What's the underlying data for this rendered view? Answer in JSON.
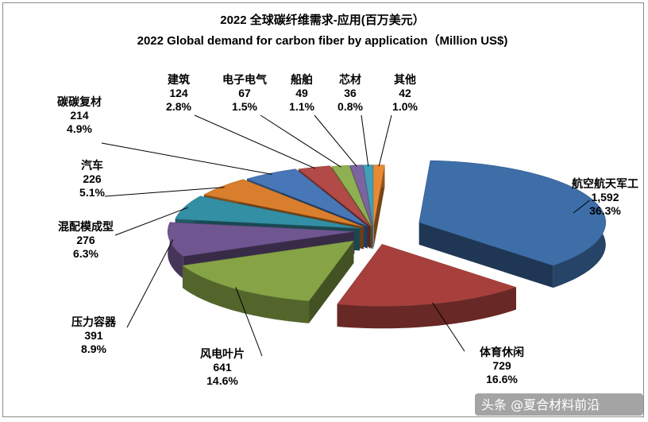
{
  "chart_data": {
    "type": "pie",
    "title": "2022 全球碳纤维需求-应用(百万美元）",
    "subtitle": "2022 Global demand for carbon fiber by application（Million US$)",
    "slices": [
      {
        "label": "航空航天军工",
        "value": 1592,
        "value_text": "1,592",
        "percent": "36.3%",
        "color": "#3D6EA8"
      },
      {
        "label": "体育休闲",
        "value": 729,
        "value_text": "729",
        "percent": "16.6%",
        "color": "#A7403C"
      },
      {
        "label": "风电叶片",
        "value": 641,
        "value_text": "641",
        "percent": "14.6%",
        "color": "#86A346"
      },
      {
        "label": "压力容器",
        "value": 391,
        "value_text": "391",
        "percent": "8.9%",
        "color": "#6F5690"
      },
      {
        "label": "混配模成型",
        "value": 276,
        "value_text": "276",
        "percent": "6.3%",
        "color": "#338FA3"
      },
      {
        "label": "汽车",
        "value": 226,
        "value_text": "226",
        "percent": "5.1%",
        "color": "#D97E2C"
      },
      {
        "label": "碳碳复材",
        "value": 214,
        "value_text": "214",
        "percent": "4.9%",
        "color": "#4877B8"
      },
      {
        "label": "建筑",
        "value": 124,
        "value_text": "124",
        "percent": "2.8%",
        "color": "#B24A47"
      },
      {
        "label": "电子电气",
        "value": 67,
        "value_text": "67",
        "percent": "1.5%",
        "color": "#8FB050"
      },
      {
        "label": "船舶",
        "value": 49,
        "value_text": "49",
        "percent": "1.1%",
        "color": "#7B64A0"
      },
      {
        "label": "芯材",
        "value": 36,
        "value_text": "36",
        "percent": "0.8%",
        "color": "#3FA0B8"
      },
      {
        "label": "其他",
        "value": 42,
        "value_text": "42",
        "percent": "1.0%",
        "color": "#E88A34"
      }
    ],
    "style": "3d-exploded-pie"
  },
  "watermark": {
    "text": "头条 @夏合材料前沿"
  }
}
